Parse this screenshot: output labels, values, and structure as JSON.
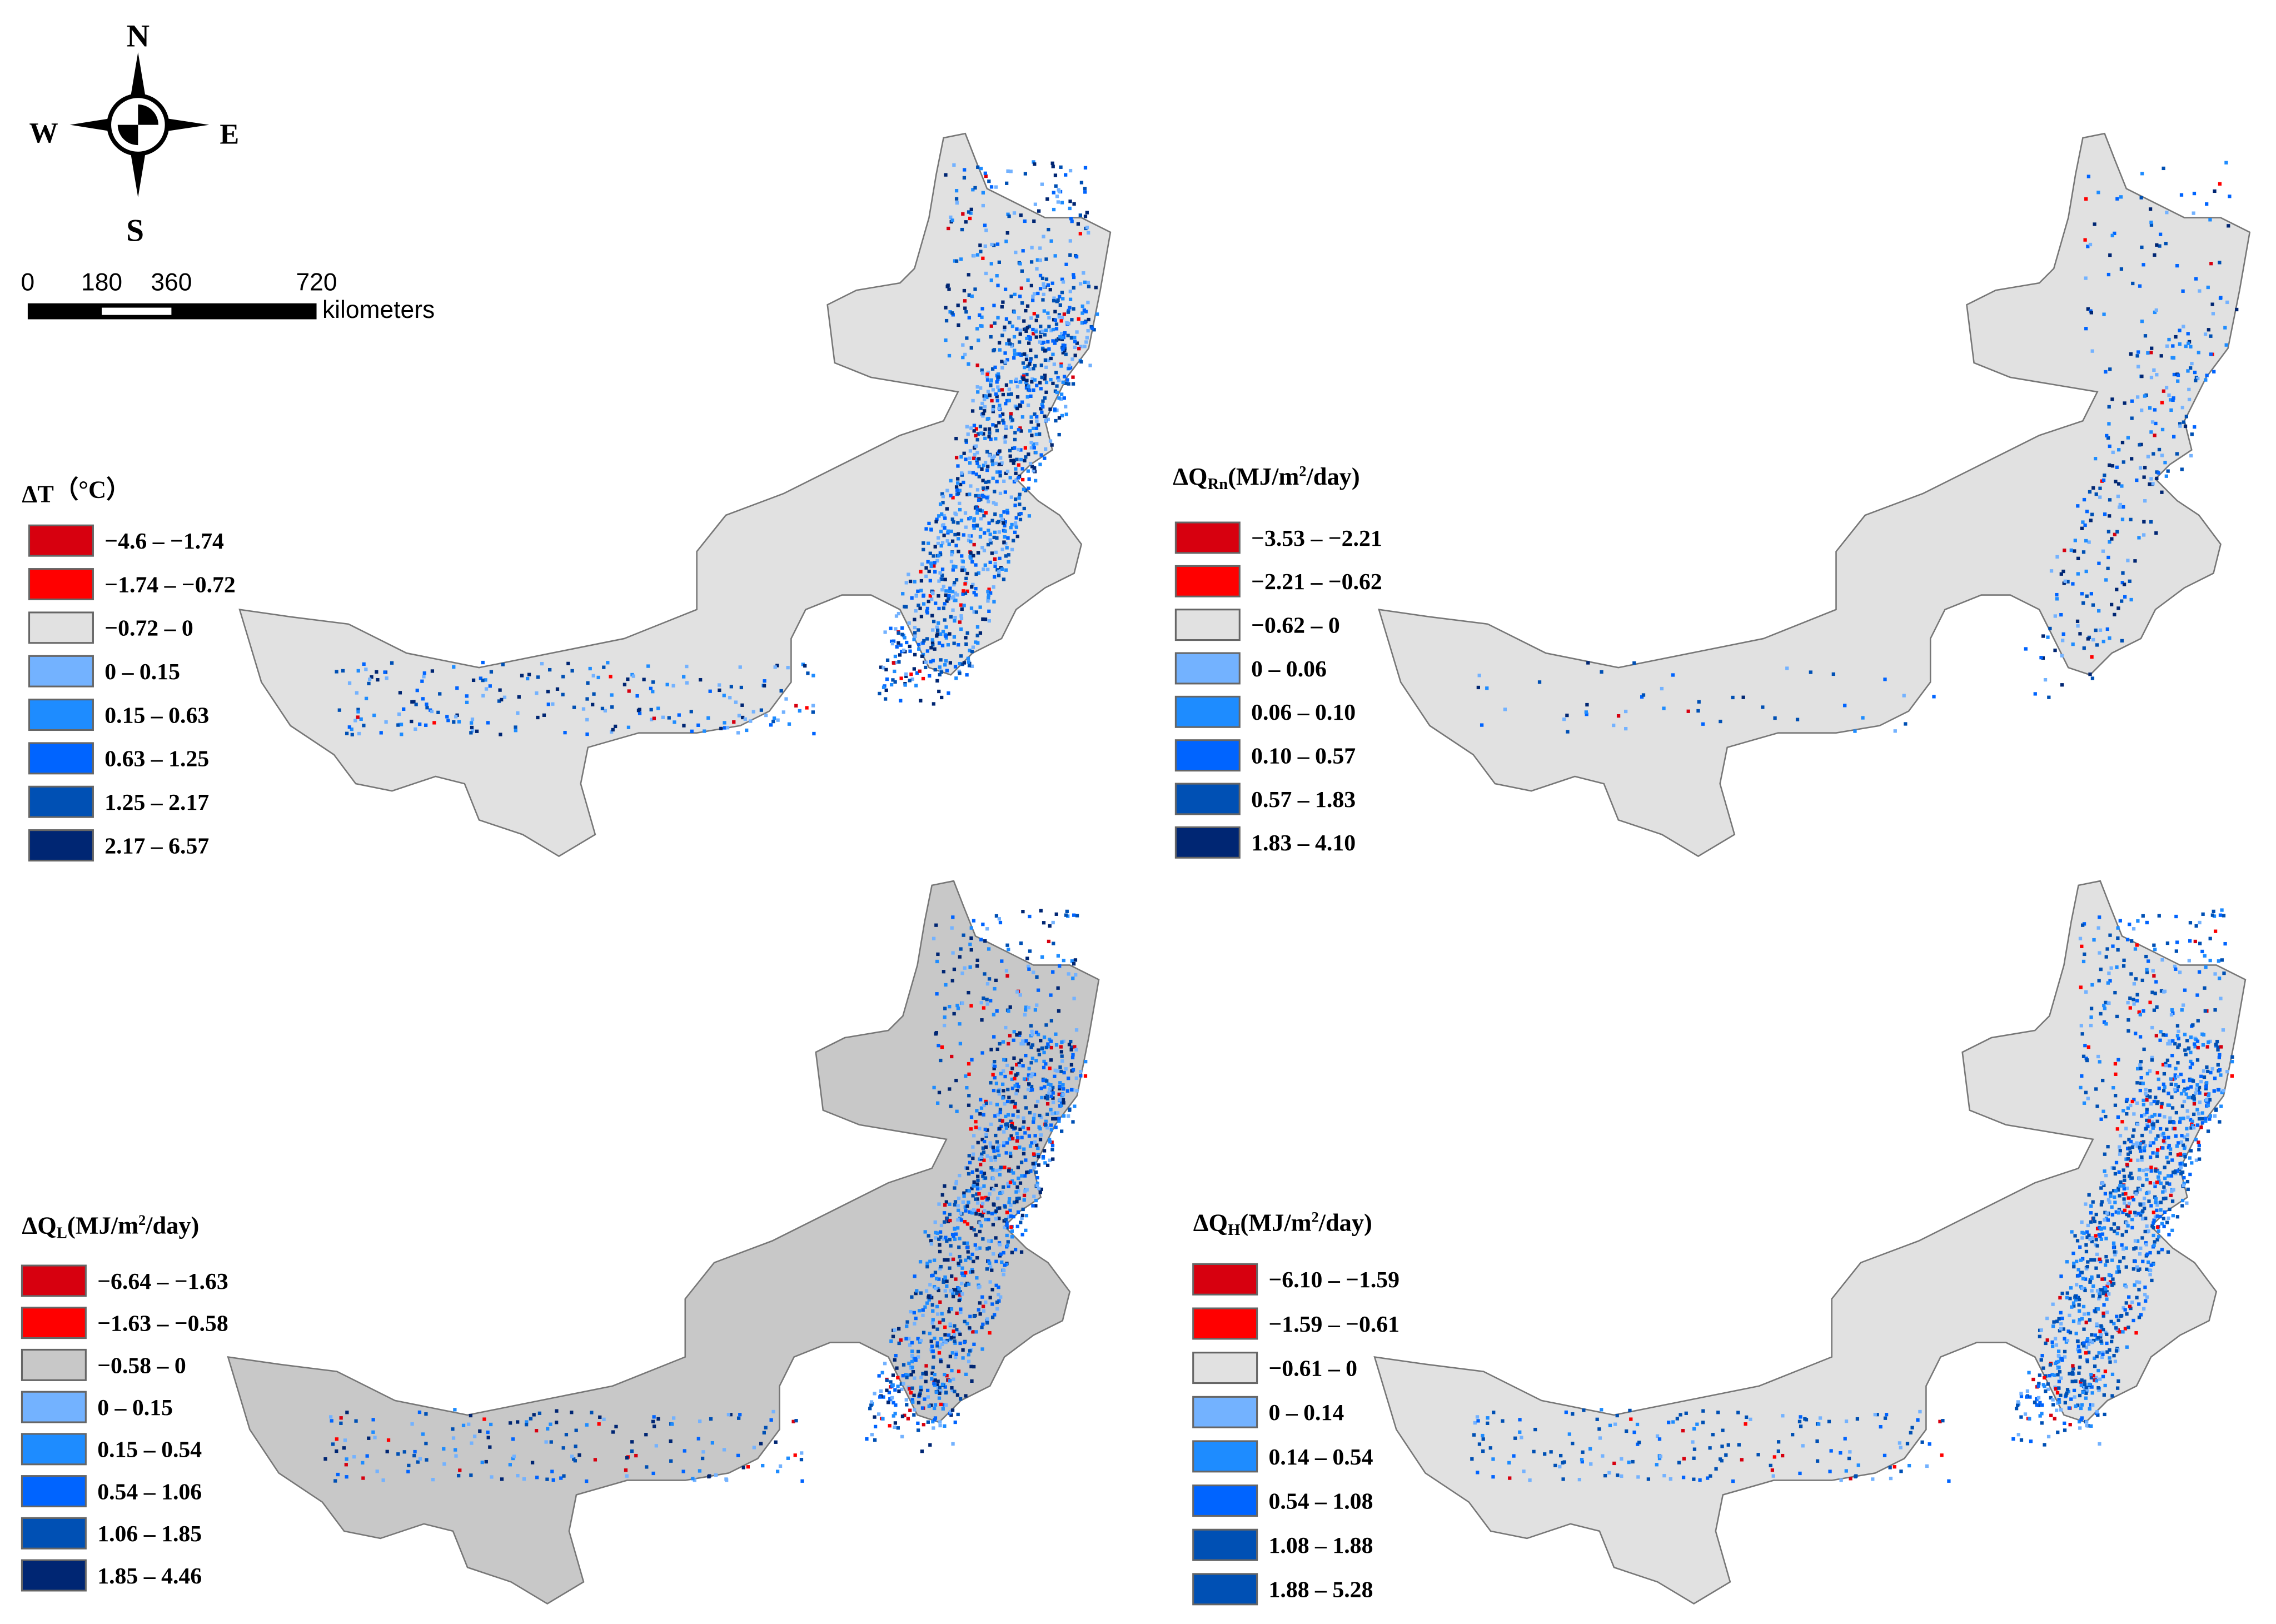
{
  "compass": {
    "north": "N",
    "south": "S",
    "east": "E",
    "west": "W"
  },
  "scale_bar": {
    "labels": [
      "0",
      "180",
      "360",
      "720"
    ],
    "unit": "kilometers"
  },
  "panels": [
    {
      "title": {
        "symbol": "ΔT",
        "subscript": "",
        "unit_start": "（°C）",
        "superscript": "",
        "unit_end": ""
      },
      "legend": [
        {
          "label": "−4.6 – −1.74",
          "color": "#d7000f"
        },
        {
          "label": "−1.74 – −0.72",
          "color": "#ff0000"
        },
        {
          "label": "−0.72 – 0",
          "color": "#e1e1e1"
        },
        {
          "label": "0 – 0.15",
          "color": "#73b2ff"
        },
        {
          "label": "0.15 – 0.63",
          "color": "#1e8cff"
        },
        {
          "label": "0.63 – 1.25",
          "color": "#0064ff"
        },
        {
          "label": "1.25 – 2.17",
          "color": "#0050b4"
        },
        {
          "label": "2.17 – 6.57",
          "color": "#002673"
        }
      ]
    },
    {
      "title": {
        "symbol": "ΔQ",
        "subscript": "Rn",
        "unit_start": "(MJ/m",
        "superscript": "2",
        "unit_end": "/day)"
      },
      "legend": [
        {
          "label": "−3.53 – −2.21",
          "color": "#d7000f"
        },
        {
          "label": "−2.21 – −0.62",
          "color": "#ff0000"
        },
        {
          "label": "−0.62 – 0",
          "color": "#e1e1e1"
        },
        {
          "label": "0 – 0.06",
          "color": "#73b2ff"
        },
        {
          "label": "0.06 – 0.10",
          "color": "#1e8cff"
        },
        {
          "label": "0.10 – 0.57",
          "color": "#0064ff"
        },
        {
          "label": "0.57 – 1.83",
          "color": "#0050b4"
        },
        {
          "label": "1.83 – 4.10",
          "color": "#002673"
        }
      ]
    },
    {
      "title": {
        "symbol": "ΔQ",
        "subscript": "L",
        "unit_start": "(MJ/m",
        "superscript": "2",
        "unit_end": "/day)"
      },
      "legend": [
        {
          "label": "−6.64 – −1.63",
          "color": "#d7000f"
        },
        {
          "label": "−1.63 – −0.58",
          "color": "#ff0000"
        },
        {
          "label": "−0.58 – 0",
          "color": "#c8c8c8"
        },
        {
          "label": "0 – 0.15",
          "color": "#73b2ff"
        },
        {
          "label": "0.15 – 0.54",
          "color": "#1e8cff"
        },
        {
          "label": "0.54 – 1.06",
          "color": "#0064ff"
        },
        {
          "label": "1.06 – 1.85",
          "color": "#0050b4"
        },
        {
          "label": "1.85 – 4.46",
          "color": "#002673"
        }
      ]
    },
    {
      "title": {
        "symbol": "ΔQ",
        "subscript": "H",
        "unit_start": "(MJ/m",
        "superscript": "2",
        "unit_end": "/day)"
      },
      "legend": [
        {
          "label": "−6.10 – −1.59",
          "color": "#d7000f"
        },
        {
          "label": "−1.59 – −0.61",
          "color": "#ff0000"
        },
        {
          "label": "−0.61 – 0",
          "color": "#e1e1e1"
        },
        {
          "label": "0 – 0.14",
          "color": "#73b2ff"
        },
        {
          "label": "0.14 – 0.54",
          "color": "#1e8cff"
        },
        {
          "label": "0.54 – 1.08",
          "color": "#0064ff"
        },
        {
          "label": "1.08 – 1.88",
          "color": "#0050b4"
        },
        {
          "label": "1.88 – 5.28",
          "color": "#0050b4"
        }
      ]
    }
  ]
}
